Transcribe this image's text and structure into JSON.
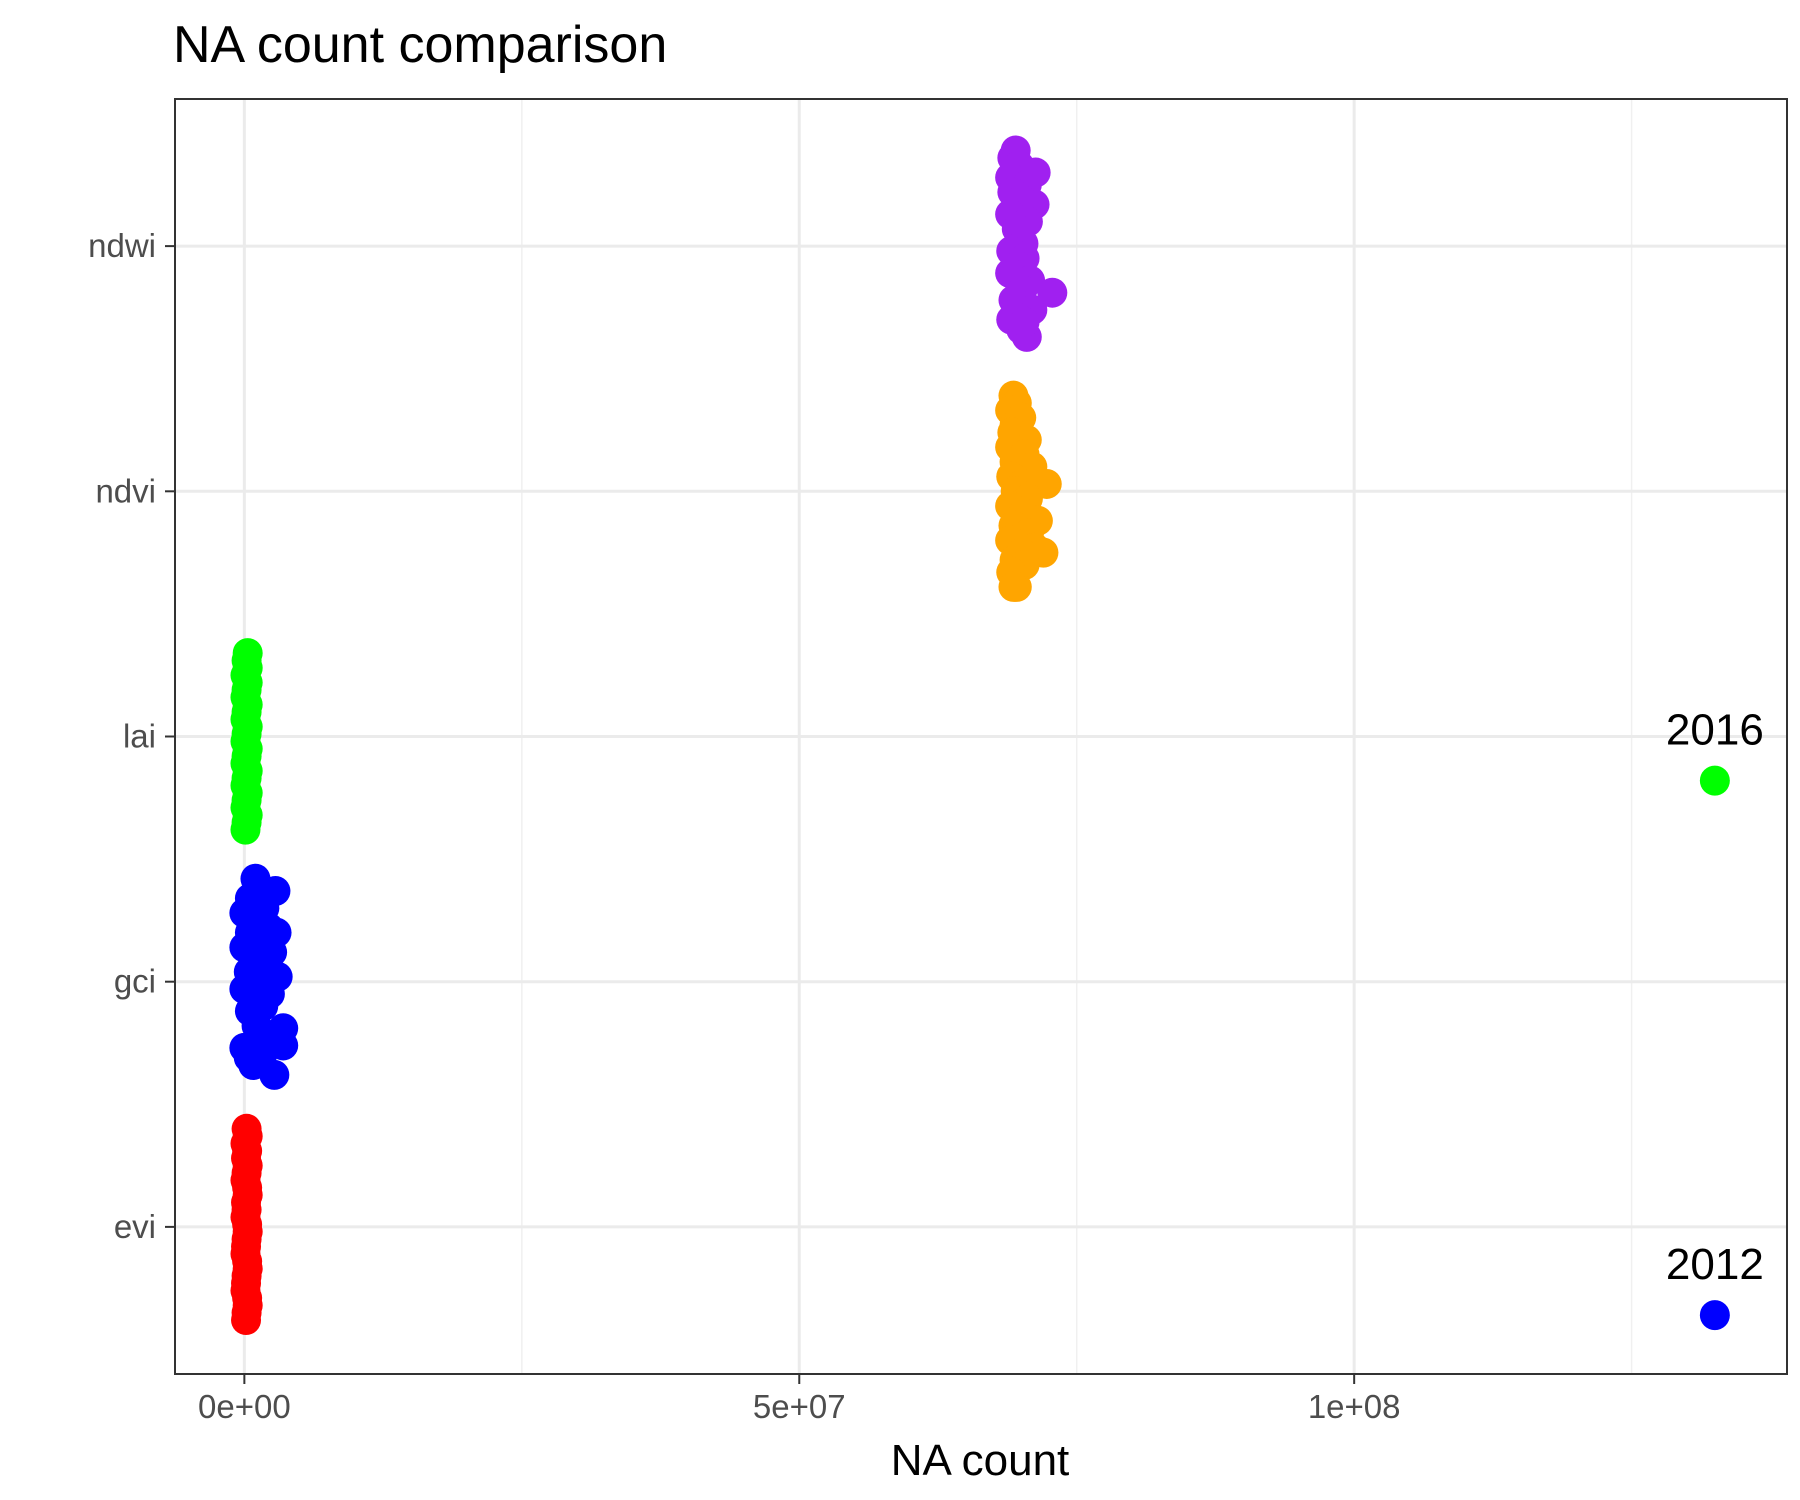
{
  "chart_data": {
    "type": "scatter",
    "title": "NA count comparison",
    "xlabel": "NA count",
    "ylabel": "",
    "xlim": [
      -6250000,
      139000000
    ],
    "x_ticks": [
      {
        "value": 0,
        "label": "0e+00"
      },
      {
        "value": 50000000,
        "label": "5e+07"
      },
      {
        "value": 100000000,
        "label": "1e+08"
      }
    ],
    "x_minor": [
      25000000,
      75000000,
      125000000
    ],
    "categories": [
      "evi",
      "gci",
      "lai",
      "ndvi",
      "ndwi"
    ],
    "grid": true,
    "legend": "none",
    "series": [
      {
        "category": "evi",
        "color": "#FF0000",
        "points": [
          [
            200000,
            0.4
          ],
          [
            300000,
            0.37
          ],
          [
            100000,
            0.34
          ],
          [
            250000,
            0.31
          ],
          [
            150000,
            0.28
          ],
          [
            300000,
            0.25
          ],
          [
            200000,
            0.22
          ],
          [
            100000,
            0.19
          ],
          [
            250000,
            0.16
          ],
          [
            300000,
            0.13
          ],
          [
            150000,
            0.1
          ],
          [
            200000,
            0.07
          ],
          [
            100000,
            0.04
          ],
          [
            250000,
            0.01
          ],
          [
            300000,
            -0.02
          ],
          [
            200000,
            -0.05
          ],
          [
            150000,
            -0.08
          ],
          [
            100000,
            -0.11
          ],
          [
            250000,
            -0.14
          ],
          [
            300000,
            -0.17
          ],
          [
            200000,
            -0.2
          ],
          [
            150000,
            -0.23
          ],
          [
            100000,
            -0.26
          ],
          [
            250000,
            -0.29
          ],
          [
            300000,
            -0.32
          ],
          [
            200000,
            -0.35
          ],
          [
            150000,
            -0.38
          ]
        ]
      },
      {
        "category": "gci",
        "color": "#0000FF",
        "points": [
          [
            1000000,
            0.42
          ],
          [
            2800000,
            0.37
          ],
          [
            500000,
            0.34
          ],
          [
            1800000,
            0.3
          ],
          [
            0,
            0.28
          ],
          [
            1200000,
            0.25
          ],
          [
            2200000,
            0.22
          ],
          [
            500000,
            0.2
          ],
          [
            1500000,
            0.17
          ],
          [
            0,
            0.14
          ],
          [
            2500000,
            0.12
          ],
          [
            900000,
            0.1
          ],
          [
            1800000,
            0.07
          ],
          [
            3000000,
            0.02
          ],
          [
            400000,
            0.04
          ],
          [
            1400000,
            0.0
          ],
          [
            0,
            -0.03
          ],
          [
            2300000,
            -0.05
          ],
          [
            700000,
            -0.07
          ],
          [
            1700000,
            -0.1
          ],
          [
            500000,
            -0.12
          ],
          [
            3500000,
            -0.19
          ],
          [
            1100000,
            -0.18
          ],
          [
            0,
            -0.27
          ],
          [
            2100000,
            -0.23
          ],
          [
            3500000,
            -0.26
          ],
          [
            400000,
            -0.31
          ],
          [
            1600000,
            -0.3
          ],
          [
            2700000,
            -0.38
          ],
          [
            800000,
            -0.34
          ],
          [
            2000000,
            -0.02
          ],
          [
            2900000,
            0.2
          ]
        ]
      },
      {
        "category": "lai",
        "color": "#00FF00",
        "points": [
          [
            300000,
            0.34
          ],
          [
            200000,
            0.31
          ],
          [
            300000,
            0.28
          ],
          [
            100000,
            0.25
          ],
          [
            300000,
            0.22
          ],
          [
            200000,
            0.19
          ],
          [
            100000,
            0.16
          ],
          [
            300000,
            0.13
          ],
          [
            200000,
            0.1
          ],
          [
            100000,
            0.07
          ],
          [
            300000,
            0.04
          ],
          [
            200000,
            0.01
          ],
          [
            100000,
            -0.02
          ],
          [
            300000,
            -0.05
          ],
          [
            200000,
            -0.08
          ],
          [
            100000,
            -0.11
          ],
          [
            300000,
            -0.14
          ],
          [
            200000,
            -0.17
          ],
          [
            100000,
            -0.2
          ],
          [
            300000,
            -0.23
          ],
          [
            200000,
            -0.26
          ],
          [
            100000,
            -0.29
          ],
          [
            300000,
            -0.32
          ],
          [
            200000,
            -0.35
          ],
          [
            100000,
            -0.38
          ]
        ]
      },
      {
        "category": "ndvi",
        "color": "#FFA500",
        "points": [
          [
            69300000,
            0.39
          ],
          [
            69600000,
            0.36
          ],
          [
            69000000,
            0.33
          ],
          [
            70000000,
            0.3
          ],
          [
            69400000,
            0.27
          ],
          [
            69200000,
            0.24
          ],
          [
            70500000,
            0.21
          ],
          [
            69000000,
            0.18
          ],
          [
            70300000,
            0.15
          ],
          [
            69400000,
            0.12
          ],
          [
            71000000,
            0.1
          ],
          [
            72300000,
            0.03
          ],
          [
            69100000,
            0.06
          ],
          [
            70100000,
            0.03
          ],
          [
            69500000,
            0.0
          ],
          [
            70600000,
            -0.03
          ],
          [
            69000000,
            -0.06
          ],
          [
            70200000,
            -0.09
          ],
          [
            71500000,
            -0.12
          ],
          [
            69300000,
            -0.14
          ],
          [
            70700000,
            -0.17
          ],
          [
            69000000,
            -0.2
          ],
          [
            71200000,
            -0.23
          ],
          [
            70000000,
            -0.25
          ],
          [
            72000000,
            -0.25
          ],
          [
            69400000,
            -0.28
          ],
          [
            70300000,
            -0.3
          ],
          [
            69100000,
            -0.33
          ],
          [
            69600000,
            -0.39
          ],
          [
            69300000,
            -0.39
          ]
        ]
      },
      {
        "category": "ndwi",
        "color": "#A020F0",
        "points": [
          [
            69500000,
            0.39
          ],
          [
            69200000,
            0.36
          ],
          [
            71300000,
            0.3
          ],
          [
            69800000,
            0.33
          ],
          [
            69000000,
            0.28
          ],
          [
            70500000,
            0.25
          ],
          [
            71200000,
            0.17
          ],
          [
            69200000,
            0.22
          ],
          [
            70000000,
            0.19
          ],
          [
            69000000,
            0.13
          ],
          [
            70600000,
            0.1
          ],
          [
            69600000,
            0.07
          ],
          [
            70200000,
            0.01
          ],
          [
            69100000,
            -0.02
          ],
          [
            70300000,
            -0.05
          ],
          [
            69700000,
            -0.08
          ],
          [
            69000000,
            -0.11
          ],
          [
            70800000,
            -0.14
          ],
          [
            72800000,
            -0.19
          ],
          [
            70100000,
            -0.18
          ],
          [
            69300000,
            -0.22
          ],
          [
            71000000,
            -0.26
          ],
          [
            69100000,
            -0.3
          ],
          [
            70000000,
            -0.34
          ],
          [
            70500000,
            -0.37
          ],
          [
            69600000,
            -0.29
          ],
          [
            70300000,
            -0.31
          ]
        ]
      }
    ],
    "annotations": [
      {
        "label": "2016",
        "x": 132500000,
        "y": 2.82,
        "color": "#00FF00"
      },
      {
        "label": "2012",
        "x": 132500000,
        "y": 0.64,
        "color": "#0000FF"
      }
    ]
  }
}
